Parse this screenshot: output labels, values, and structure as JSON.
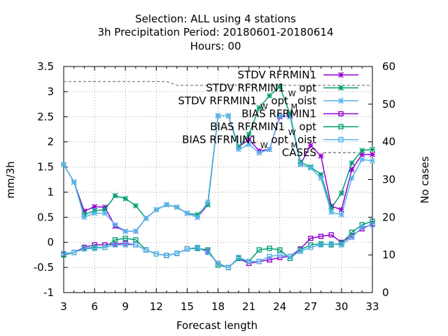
{
  "title_lines": [
    "Selection: ALL using     4 stations",
    "3h Precipitation   Period: 20180601-20180614",
    "Hours:  00"
  ],
  "chart_data": {
    "type": "line",
    "xlabel": "Forecast length",
    "ylabel": "mm/3h",
    "y2label": "No cases",
    "xlim": [
      3,
      33
    ],
    "ylim": [
      -1,
      3.5
    ],
    "y2lim": [
      0,
      60
    ],
    "xticks": [
      3,
      6,
      9,
      12,
      15,
      18,
      21,
      24,
      27,
      30,
      33
    ],
    "yticks": [
      -1,
      -0.5,
      0,
      0.5,
      1,
      1.5,
      2,
      2.5,
      3,
      3.5
    ],
    "y2ticks": [
      0,
      10,
      20,
      30,
      40,
      50,
      60
    ],
    "grid": true,
    "legend_position": "top-right",
    "x": [
      3,
      4,
      5,
      6,
      7,
      8,
      9,
      10,
      11,
      12,
      13,
      14,
      15,
      16,
      17,
      18,
      19,
      20,
      21,
      22,
      23,
      24,
      25,
      26,
      27,
      28,
      29,
      30,
      31,
      32,
      33
    ],
    "series": [
      {
        "name": "STDV RFRMIN1",
        "color": "#9400d3",
        "marker": "x",
        "values": [
          1.55,
          1.2,
          0.62,
          0.71,
          0.7,
          0.32,
          0.22,
          0.22,
          0.48,
          0.65,
          0.75,
          0.7,
          0.58,
          0.5,
          0.75,
          2.52,
          2.52,
          1.9,
          2.05,
          1.82,
          1.85,
          2.5,
          2.52,
          1.55,
          1.93,
          1.72,
          0.72,
          0.65,
          1.45,
          1.75,
          1.75
        ]
      },
      {
        "name_main": "STDV RFRMIN1",
        "name_sub": "W",
        "name_tail": "opt",
        "color": "#009e73",
        "marker": "x",
        "values": [
          1.55,
          1.2,
          0.55,
          0.63,
          0.65,
          0.93,
          0.87,
          0.73,
          0.48,
          0.65,
          0.75,
          0.7,
          0.58,
          0.55,
          0.75,
          2.52,
          2.52,
          1.9,
          2.15,
          2.68,
          2.92,
          3.1,
          2.55,
          1.6,
          1.5,
          1.35,
          0.68,
          0.98,
          1.58,
          1.83,
          1.85
        ]
      },
      {
        "name_main": "STDV RFRMIN1",
        "name_sub": "W",
        "name_tail": "opt",
        "name_sub2": "M",
        "name_tail2": "oist",
        "color": "#56b4e9",
        "marker": "x",
        "values": [
          1.55,
          1.2,
          0.5,
          0.58,
          0.58,
          0.35,
          0.22,
          0.22,
          0.48,
          0.65,
          0.75,
          0.7,
          0.58,
          0.5,
          0.8,
          2.52,
          2.52,
          1.85,
          1.95,
          1.78,
          1.85,
          2.52,
          2.5,
          1.55,
          1.48,
          1.28,
          0.6,
          0.55,
          1.28,
          1.65,
          1.62
        ]
      },
      {
        "name": "BIAS RFRMIN1",
        "color": "#9400d3",
        "marker": "square",
        "values": [
          -0.23,
          -0.2,
          -0.1,
          -0.05,
          -0.05,
          -0.03,
          -0.02,
          -0.05,
          -0.15,
          -0.23,
          -0.26,
          -0.22,
          -0.13,
          -0.12,
          -0.18,
          -0.42,
          -0.5,
          -0.32,
          -0.42,
          -0.38,
          -0.35,
          -0.3,
          -0.28,
          -0.13,
          0.08,
          0.12,
          0.15,
          0.0,
          0.13,
          0.27,
          0.37
        ]
      },
      {
        "name_main": "BIAS RFRMIN1",
        "name_sub": "W",
        "name_tail": "opt",
        "color": "#009e73",
        "marker": "square",
        "values": [
          -0.25,
          -0.2,
          -0.12,
          -0.1,
          -0.1,
          0.05,
          0.08,
          0.05,
          -0.15,
          -0.23,
          -0.26,
          -0.22,
          -0.13,
          -0.12,
          -0.15,
          -0.45,
          -0.5,
          -0.32,
          -0.38,
          -0.15,
          -0.12,
          -0.15,
          -0.32,
          -0.15,
          -0.05,
          -0.03,
          -0.05,
          -0.02,
          0.2,
          0.35,
          0.42
        ]
      },
      {
        "name_main": "BIAS RFRMIN1",
        "name_sub": "W",
        "name_tail": "opt",
        "name_sub2": "M",
        "name_tail2": "oist",
        "color": "#56b4e9",
        "marker": "square",
        "values": [
          -0.22,
          -0.2,
          -0.13,
          -0.12,
          -0.1,
          -0.05,
          -0.05,
          -0.05,
          -0.15,
          -0.23,
          -0.26,
          -0.22,
          -0.13,
          -0.1,
          -0.2,
          -0.42,
          -0.5,
          -0.3,
          -0.38,
          -0.38,
          -0.28,
          -0.25,
          -0.28,
          -0.18,
          -0.1,
          -0.05,
          -0.03,
          -0.05,
          0.1,
          0.3,
          0.35
        ]
      },
      {
        "name": "CASES",
        "color": "#808080",
        "marker": "none",
        "dashed": true,
        "axis": "y2",
        "values": [
          56,
          56,
          56,
          56,
          56,
          56,
          56,
          56,
          56,
          56,
          56,
          55,
          55,
          55,
          55,
          55,
          55,
          55,
          55,
          55,
          55,
          55,
          55,
          55,
          55,
          55,
          55,
          55,
          55,
          55,
          55
        ]
      }
    ]
  }
}
